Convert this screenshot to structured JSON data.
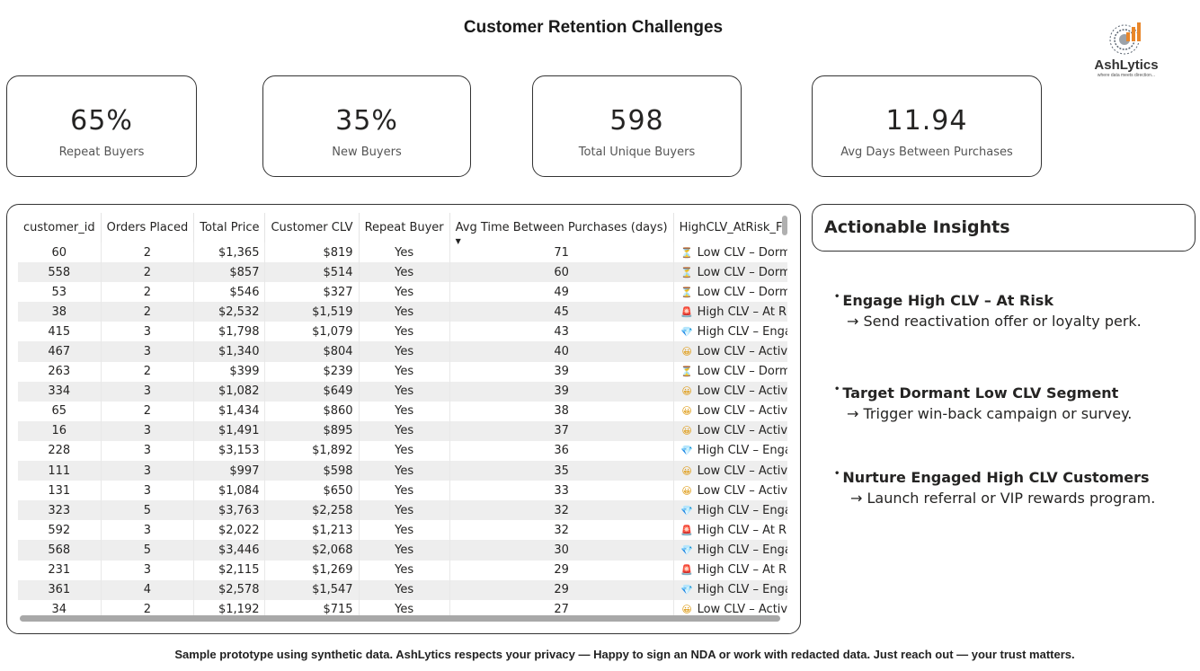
{
  "page": {
    "title": "Customer Retention Challenges",
    "footer": "Sample prototype using synthetic data. AshLytics respects your privacy — Happy to sign an NDA or work with redacted data. Just reach out — your trust matters."
  },
  "logo": {
    "name": "AshLytics",
    "tagline": "where data meets direction..."
  },
  "kpis": [
    {
      "value": "65%",
      "label": "Repeat Buyers"
    },
    {
      "value": "35%",
      "label": "New Buyers"
    },
    {
      "value": "598",
      "label": "Total Unique Buyers"
    },
    {
      "value": "11.94",
      "label": "Avg Days Between Purchases"
    }
  ],
  "table": {
    "columns": [
      "customer_id",
      "Orders Placed",
      "Total Price",
      "Customer CLV",
      "Repeat Buyer",
      "Avg Time Between Purchases (days)",
      "HighCLV_AtRisk_Flag"
    ],
    "sorted_column": "Avg Time Between Purchases (days)",
    "sort_direction": "descending",
    "flag_icons": {
      "Low CLV – Dormant": "hourglass-icon",
      "High CLV – At Risk": "alarm-icon",
      "High CLV – Engaged": "gem-icon",
      "Low CLV – Active": "smiley-icon"
    },
    "rows": [
      [
        "60",
        "2",
        "$1,365",
        "$819",
        "Yes",
        "71",
        "Low CLV – Dormant"
      ],
      [
        "558",
        "2",
        "$857",
        "$514",
        "Yes",
        "60",
        "Low CLV – Dormant"
      ],
      [
        "53",
        "2",
        "$546",
        "$327",
        "Yes",
        "49",
        "Low CLV – Dormant"
      ],
      [
        "38",
        "2",
        "$2,532",
        "$1,519",
        "Yes",
        "45",
        "High CLV – At Risk"
      ],
      [
        "415",
        "3",
        "$1,798",
        "$1,079",
        "Yes",
        "43",
        "High CLV – Engaged"
      ],
      [
        "467",
        "3",
        "$1,340",
        "$804",
        "Yes",
        "40",
        "Low CLV – Active"
      ],
      [
        "263",
        "2",
        "$399",
        "$239",
        "Yes",
        "39",
        "Low CLV – Dormant"
      ],
      [
        "334",
        "3",
        "$1,082",
        "$649",
        "Yes",
        "39",
        "Low CLV – Active"
      ],
      [
        "65",
        "2",
        "$1,434",
        "$860",
        "Yes",
        "38",
        "Low CLV – Active"
      ],
      [
        "16",
        "3",
        "$1,491",
        "$895",
        "Yes",
        "37",
        "Low CLV – Active"
      ],
      [
        "228",
        "3",
        "$3,153",
        "$1,892",
        "Yes",
        "36",
        "High CLV – Engaged"
      ],
      [
        "111",
        "3",
        "$997",
        "$598",
        "Yes",
        "35",
        "Low CLV – Active"
      ],
      [
        "131",
        "3",
        "$1,084",
        "$650",
        "Yes",
        "33",
        "Low CLV – Active"
      ],
      [
        "323",
        "5",
        "$3,763",
        "$2,258",
        "Yes",
        "32",
        "High CLV – Engaged"
      ],
      [
        "592",
        "3",
        "$2,022",
        "$1,213",
        "Yes",
        "32",
        "High CLV – At Risk"
      ],
      [
        "568",
        "5",
        "$3,446",
        "$2,068",
        "Yes",
        "30",
        "High CLV – Engaged"
      ],
      [
        "231",
        "3",
        "$2,115",
        "$1,269",
        "Yes",
        "29",
        "High CLV – At Risk"
      ],
      [
        "361",
        "4",
        "$2,578",
        "$1,547",
        "Yes",
        "29",
        "High CLV – Engaged"
      ],
      [
        "34",
        "2",
        "$1,192",
        "$715",
        "Yes",
        "27",
        "Low CLV – Active"
      ]
    ]
  },
  "insights": {
    "title": "Actionable Insights",
    "items": [
      {
        "title": "Engage High CLV – At Risk",
        "action": "→ Send reactivation offer or loyalty perk."
      },
      {
        "title": "Target Dormant Low CLV Segment",
        "action": "→ Trigger win-back campaign or survey."
      },
      {
        "title": "Nurture Engaged High CLV Customers",
        "action": "→ Launch referral or VIP rewards program."
      }
    ]
  },
  "colors": {
    "border": "#333333",
    "row_stripe": "#eeeeee",
    "logo_orange": "#e8862a",
    "logo_gray": "#5a6470"
  }
}
